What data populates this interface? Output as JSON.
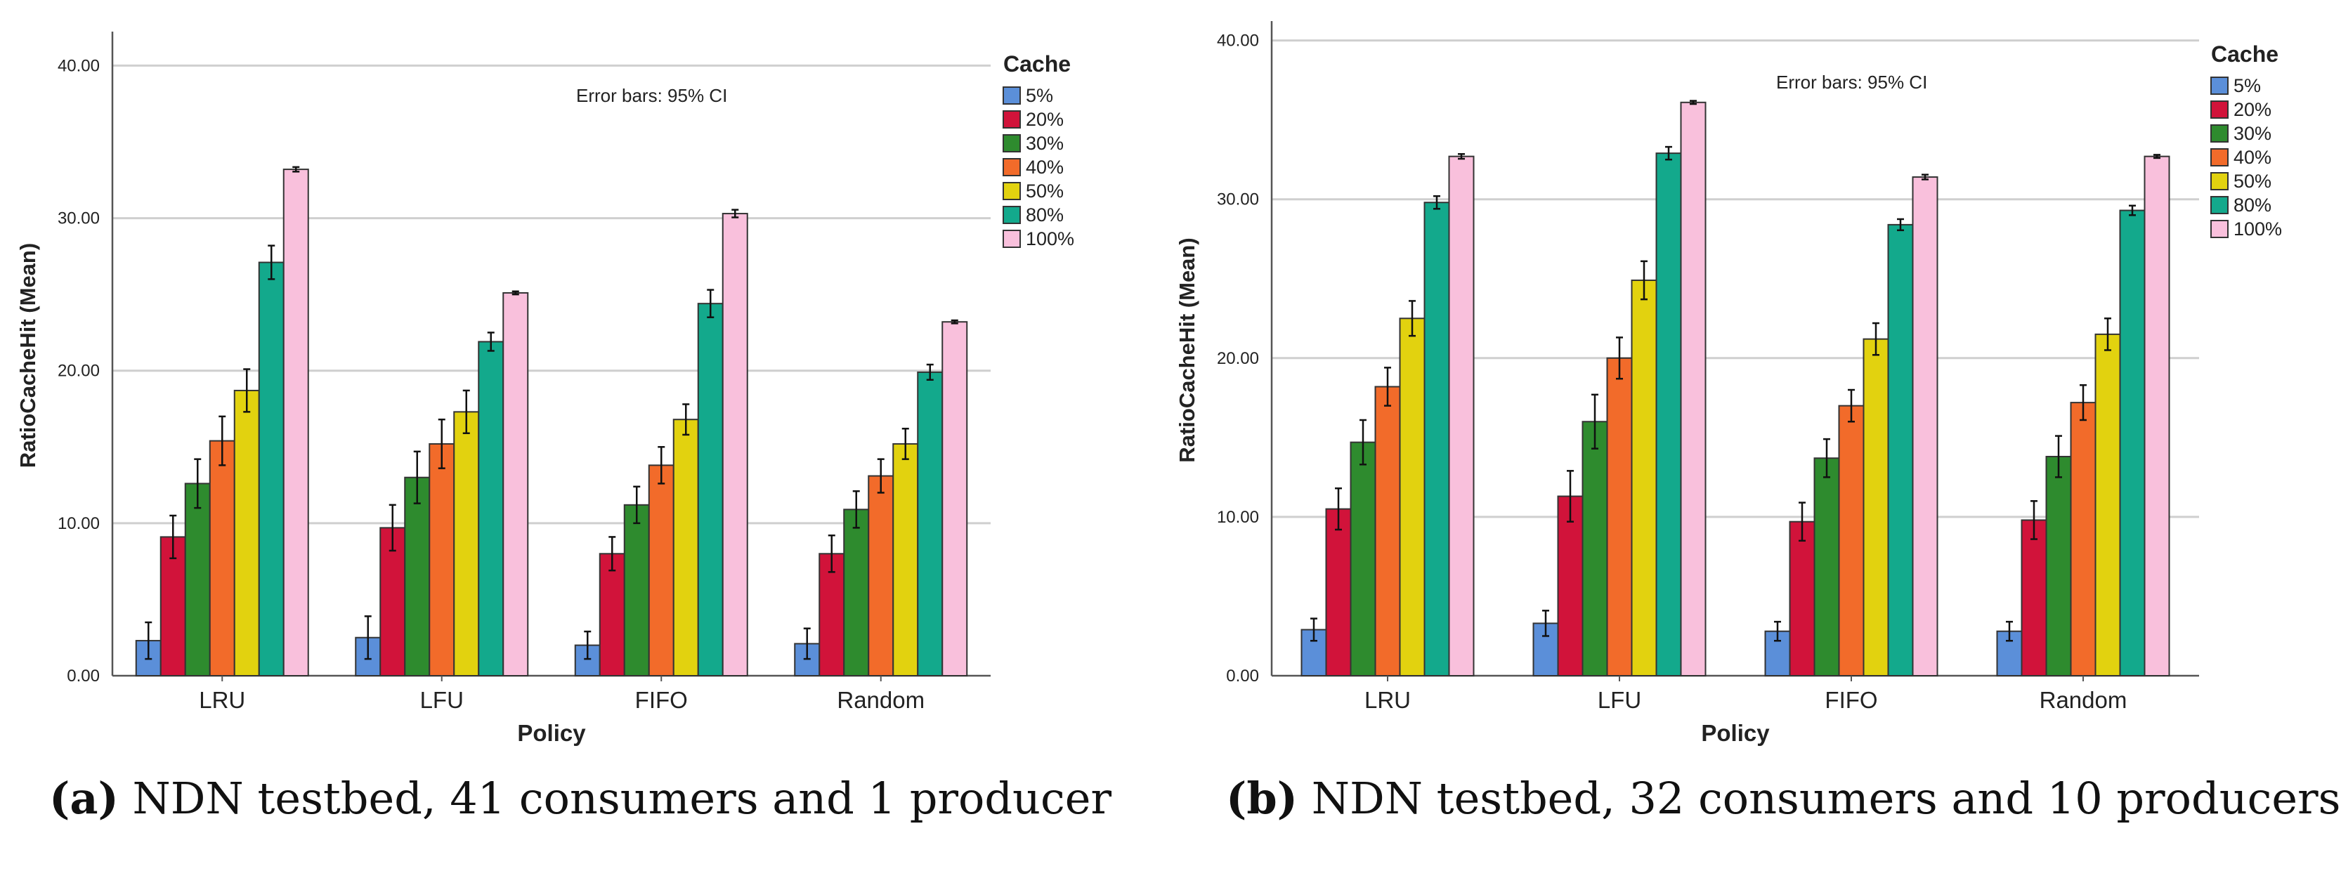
{
  "chart_data": [
    {
      "type": "bar",
      "panel": "a",
      "caption_label": "(a)",
      "caption_text": " NDN testbed, 41 consumers and 1 producer",
      "xlabel": "Policy",
      "ylabel": "RatioCacheHit (Mean)",
      "annotation": "Error bars: 95% CI",
      "legend_title": "Cache",
      "ylim": [
        0,
        42
      ],
      "yticks": [
        0,
        10,
        20,
        30,
        40
      ],
      "ytick_labels": [
        "0.00",
        "10.00",
        "20.00",
        "30.00",
        "40.00"
      ],
      "grid": true,
      "legend_position": "top-right",
      "categories": [
        "LRU",
        "LFU",
        "FIFO",
        "Random"
      ],
      "series": [
        {
          "name": "5%",
          "color": "#5b8fd9",
          "values": [
            2.3,
            2.5,
            2.0,
            2.1
          ],
          "err": [
            1.2,
            1.4,
            0.9,
            1.0
          ]
        },
        {
          "name": "20%",
          "color": "#d1133a",
          "values": [
            9.1,
            9.7,
            8.0,
            8.0
          ],
          "err": [
            1.4,
            1.5,
            1.1,
            1.2
          ]
        },
        {
          "name": "30%",
          "color": "#2e8b2e",
          "values": [
            12.6,
            13.0,
            11.2,
            10.9
          ],
          "err": [
            1.6,
            1.7,
            1.2,
            1.2
          ]
        },
        {
          "name": "40%",
          "color": "#f26b2a",
          "values": [
            15.4,
            15.2,
            13.8,
            13.1
          ],
          "err": [
            1.6,
            1.6,
            1.2,
            1.1
          ]
        },
        {
          "name": "50%",
          "color": "#e2d20f",
          "values": [
            18.7,
            17.3,
            16.8,
            15.2
          ],
          "err": [
            1.4,
            1.4,
            1.0,
            1.0
          ]
        },
        {
          "name": "80%",
          "color": "#13a98c",
          "values": [
            27.1,
            21.9,
            24.4,
            19.9
          ],
          "err": [
            1.1,
            0.6,
            0.9,
            0.5
          ]
        },
        {
          "name": "100%",
          "color": "#f9c0dc",
          "values": [
            33.2,
            25.1,
            30.3,
            23.2
          ],
          "err": [
            0.15,
            0.1,
            0.25,
            0.1
          ]
        }
      ]
    },
    {
      "type": "bar",
      "panel": "b",
      "caption_label": "(b)",
      "caption_text": " NDN testbed, 32 consumers and 10 producers",
      "xlabel": "Policy",
      "ylabel": "RatioCacheHit (Mean)",
      "annotation": "Error bars: 95% CI",
      "legend_title": "Cache",
      "ylim": [
        0,
        41
      ],
      "yticks": [
        0,
        10,
        20,
        30,
        40
      ],
      "ytick_labels": [
        "0.00",
        "10.00",
        "20.00",
        "30.00",
        "40.00"
      ],
      "grid": true,
      "legend_position": "top-right",
      "categories": [
        "LRU",
        "LFU",
        "FIFO",
        "Random"
      ],
      "series": [
        {
          "name": "5%",
          "color": "#5b8fd9",
          "values": [
            2.9,
            3.3,
            2.8,
            2.8
          ],
          "err": [
            0.7,
            0.8,
            0.6,
            0.6
          ]
        },
        {
          "name": "20%",
          "color": "#d1133a",
          "values": [
            10.5,
            11.3,
            9.7,
            9.8
          ],
          "err": [
            1.3,
            1.6,
            1.2,
            1.2
          ]
        },
        {
          "name": "30%",
          "color": "#2e8b2e",
          "values": [
            14.7,
            16.0,
            13.7,
            13.8
          ],
          "err": [
            1.4,
            1.7,
            1.2,
            1.3
          ]
        },
        {
          "name": "40%",
          "color": "#f26b2a",
          "values": [
            18.2,
            20.0,
            17.0,
            17.2
          ],
          "err": [
            1.2,
            1.3,
            1.0,
            1.1
          ]
        },
        {
          "name": "50%",
          "color": "#e2d20f",
          "values": [
            22.5,
            24.9,
            21.2,
            21.5
          ],
          "err": [
            1.1,
            1.2,
            1.0,
            1.0
          ]
        },
        {
          "name": "80%",
          "color": "#13a98c",
          "values": [
            29.8,
            32.9,
            28.4,
            29.3
          ],
          "err": [
            0.4,
            0.4,
            0.35,
            0.3
          ]
        },
        {
          "name": "100%",
          "color": "#f9c0dc",
          "values": [
            32.7,
            36.1,
            31.4,
            32.7
          ],
          "err": [
            0.15,
            0.1,
            0.15,
            0.1
          ]
        }
      ]
    }
  ]
}
